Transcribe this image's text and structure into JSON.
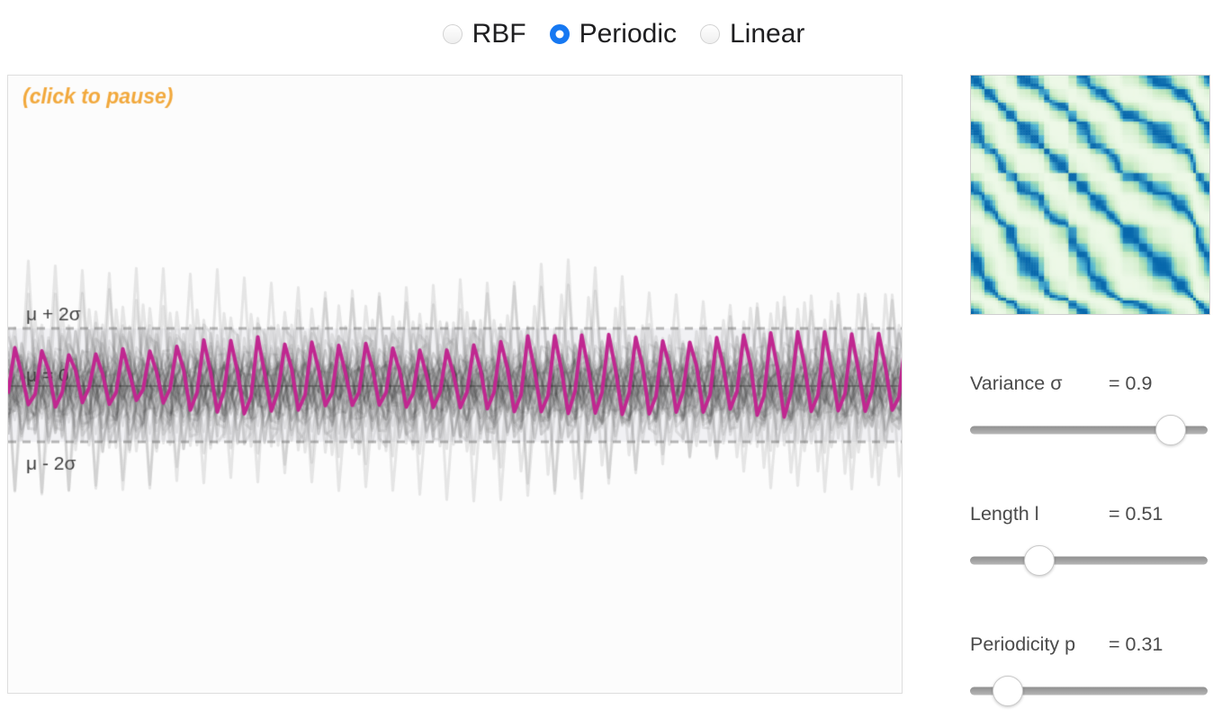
{
  "kernel_selector": {
    "accent_color": "#1678f2",
    "options": [
      {
        "label": "RBF",
        "selected": false
      },
      {
        "label": "Periodic",
        "selected": true
      },
      {
        "label": "Linear",
        "selected": false
      }
    ]
  },
  "plot": {
    "pause_hint": "(click to pause)",
    "pause_hint_color": "#f2a93d",
    "labels": {
      "upper": "μ + 2σ",
      "mean": "μ = 0",
      "lower": "μ - 2σ"
    },
    "label_color": "#3d3d3d",
    "highlight_sample_color": "#c02790",
    "faded_sample_color": "#2a2a2a",
    "band_fill": "#f1f1f4",
    "dashed_line_color": "#b5b5b5",
    "mean_line_color": "#8a8a8a",
    "kernel_type": "Periodic",
    "num_faded_samples": 42
  },
  "kernel_matrix": {
    "type": "heatmap",
    "description": "Covariance matrix of the periodic kernel k(x,x') over sorted random inputs",
    "params": {
      "variance": 0.9,
      "length": 0.51,
      "periodicity": 0.31
    },
    "colormap": [
      {
        "t": 0.0,
        "color": "#f7fcf0"
      },
      {
        "t": 0.2,
        "color": "#e0f3db"
      },
      {
        "t": 0.4,
        "color": "#ccebc5"
      },
      {
        "t": 0.55,
        "color": "#a8ddb5"
      },
      {
        "t": 0.7,
        "color": "#7bccc4"
      },
      {
        "t": 0.82,
        "color": "#4eb3d3"
      },
      {
        "t": 0.92,
        "color": "#2b8cbe"
      },
      {
        "t": 1.0,
        "color": "#0868ac"
      }
    ]
  },
  "sliders": [
    {
      "name": "variance",
      "label": "Variance σ",
      "value": 0.9,
      "value_display": "= 0.9",
      "thumb_pct": 84.5
    },
    {
      "name": "length",
      "label": "Length l",
      "value": 0.51,
      "value_display": "= 0.51",
      "thumb_pct": 29
    },
    {
      "name": "periodicity",
      "label": "Periodicity p",
      "value": 0.31,
      "value_display": "= 0.31",
      "thumb_pct": 16
    }
  ]
}
